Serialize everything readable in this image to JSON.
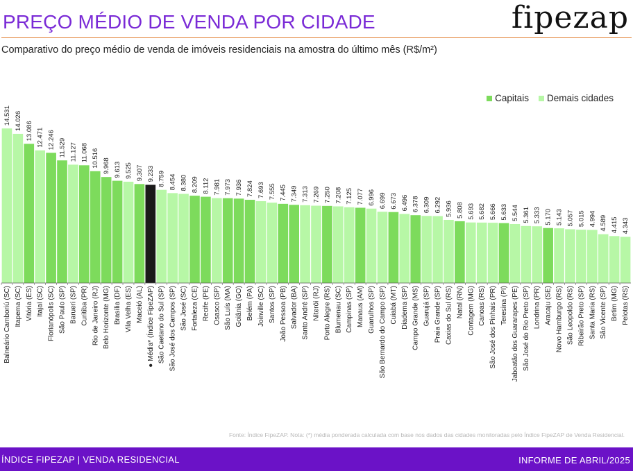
{
  "header": {
    "title": "PREÇO MÉDIO DE VENDA POR CIDADE",
    "brand": "fipezap",
    "subtitle": "Comparativo do preço médio de venda de imóveis residenciais na amostra do último mês (R$/m²)"
  },
  "colors": {
    "capital": "#7ddb5c",
    "other": "#b7f7a6",
    "average": "#1a1a1a",
    "title": "#7a2ad6",
    "footer_bg": "#6b12c7"
  },
  "chart_data": {
    "type": "bar",
    "title": "PREÇO MÉDIO DE VENDA POR CIDADE",
    "subtitle": "Comparativo do preço médio de venda de imóveis residenciais na amostra do último mês (R$/m²)",
    "xlabel": "",
    "ylabel": "",
    "ylim": [
      0,
      15000
    ],
    "grid": false,
    "legend": {
      "position": "top-right",
      "entries": [
        "Capitais",
        "Demais cidades"
      ]
    },
    "categories": [
      "Balneário Camboriú (SC)",
      "Itapema (SC)",
      "Vitória (ES)",
      "Itajaí (SC)",
      "Florianópolis (SC)",
      "São Paulo (SP)",
      "Barueri (SP)",
      "Curitiba (PR)",
      "Rio de Janeiro (RJ)",
      "Belo Horizonte (MG)",
      "Brasília (DF)",
      "Vila Velha (ES)",
      "Maceió (AL)",
      "Média* (Índice FipeZAP)",
      "São Caetano do Sul (SP)",
      "São José dos Campos (SP)",
      "São José (SC)",
      "Fortaleza (CE)",
      "Recife (PE)",
      "Osasco (SP)",
      "São Luís (MA)",
      "Goiânia (GO)",
      "Belém (PA)",
      "Joinville (SC)",
      "Santos (SP)",
      "João Pessoa (PB)",
      "Salvador (BA)",
      "Santo André (SP)",
      "Niterói (RJ)",
      "Porto Alegre (RS)",
      "Blumenau (SC)",
      "Campinas (SP)",
      "Manaus (AM)",
      "Guarulhos (SP)",
      "São Bernardo do Campo (SP)",
      "Cuiabá (MT)",
      "Diadema (SP)",
      "Campo Grande (MS)",
      "Guarujá (SP)",
      "Praia Grande (SP)",
      "Caxias do Sul (RS)",
      "Natal (RN)",
      "Contagem (MG)",
      "Canoas (RS)",
      "São José dos Pinhais (PR)",
      "Teresina (PI)",
      "Jaboatão dos Guararapes (PE)",
      "São José do Rio Preto (SP)",
      "Londrina (PR)",
      "Aracaju (SE)",
      "Novo Hamburgo (RS)",
      "São Leopoldo (RS)",
      "Ribeirão Preto (SP)",
      "Santa Maria (RS)",
      "São Vicente (SP)",
      "Betim (MG)",
      "Pelotas (RS)"
    ],
    "values": [
      14531,
      14026,
      13086,
      12471,
      12246,
      11529,
      11127,
      11068,
      10516,
      9968,
      9613,
      9525,
      9307,
      9233,
      8759,
      8454,
      8380,
      8209,
      8112,
      7981,
      7973,
      7936,
      7824,
      7693,
      7555,
      7445,
      7349,
      7313,
      7269,
      7250,
      7208,
      7125,
      7077,
      6996,
      6699,
      6673,
      6496,
      6378,
      6309,
      6292,
      5936,
      5808,
      5693,
      5682,
      5666,
      5633,
      5544,
      5361,
      5333,
      5170,
      5143,
      5057,
      5015,
      4994,
      4589,
      4415,
      4343
    ],
    "value_labels": [
      "14.531",
      "14.026",
      "13.086",
      "12.471",
      "12.246",
      "11.529",
      "11.127",
      "11.068",
      "10.516",
      "9.968",
      "9.613",
      "9.525",
      "9.307",
      "9.233",
      "8.759",
      "8.454",
      "8.380",
      "8.209",
      "8.112",
      "7.981",
      "7.973",
      "7.936",
      "7.824",
      "7.693",
      "7.555",
      "7.445",
      "7.349",
      "7.313",
      "7.269",
      "7.250",
      "7.208",
      "7.125",
      "7.077",
      "6.996",
      "6.699",
      "6.673",
      "6.496",
      "6.378",
      "6.309",
      "6.292",
      "5.936",
      "5.808",
      "5.693",
      "5.682",
      "5.666",
      "5.633",
      "5.544",
      "5.361",
      "5.333",
      "5.170",
      "5.143",
      "5.057",
      "5.015",
      "4.994",
      "4.589",
      "4.415",
      "4.343"
    ],
    "kinds": [
      "other",
      "other",
      "capital",
      "other",
      "capital",
      "capital",
      "other",
      "capital",
      "capital",
      "capital",
      "capital",
      "other",
      "capital",
      "average",
      "other",
      "other",
      "other",
      "capital",
      "capital",
      "other",
      "capital",
      "capital",
      "capital",
      "other",
      "other",
      "capital",
      "capital",
      "other",
      "other",
      "capital",
      "other",
      "other",
      "capital",
      "other",
      "other",
      "capital",
      "other",
      "capital",
      "other",
      "other",
      "other",
      "capital",
      "other",
      "other",
      "other",
      "capital",
      "other",
      "other",
      "other",
      "capital",
      "other",
      "other",
      "other",
      "other",
      "other",
      "other",
      "other"
    ]
  },
  "legend": {
    "capitals": "Capitais",
    "others": "Demais cidades"
  },
  "footnote": "Fonte: Índice FipeZAP. Nota: (*) média ponderada calculada com base nos dados das cidades monitoradas pelo Índice FipeZAP de Venda Residencial.",
  "footer": {
    "left": "ÍNDICE FIPEZAP | VENDA RESIDENCIAL",
    "right": "INFORME DE ABRIL/2025"
  }
}
